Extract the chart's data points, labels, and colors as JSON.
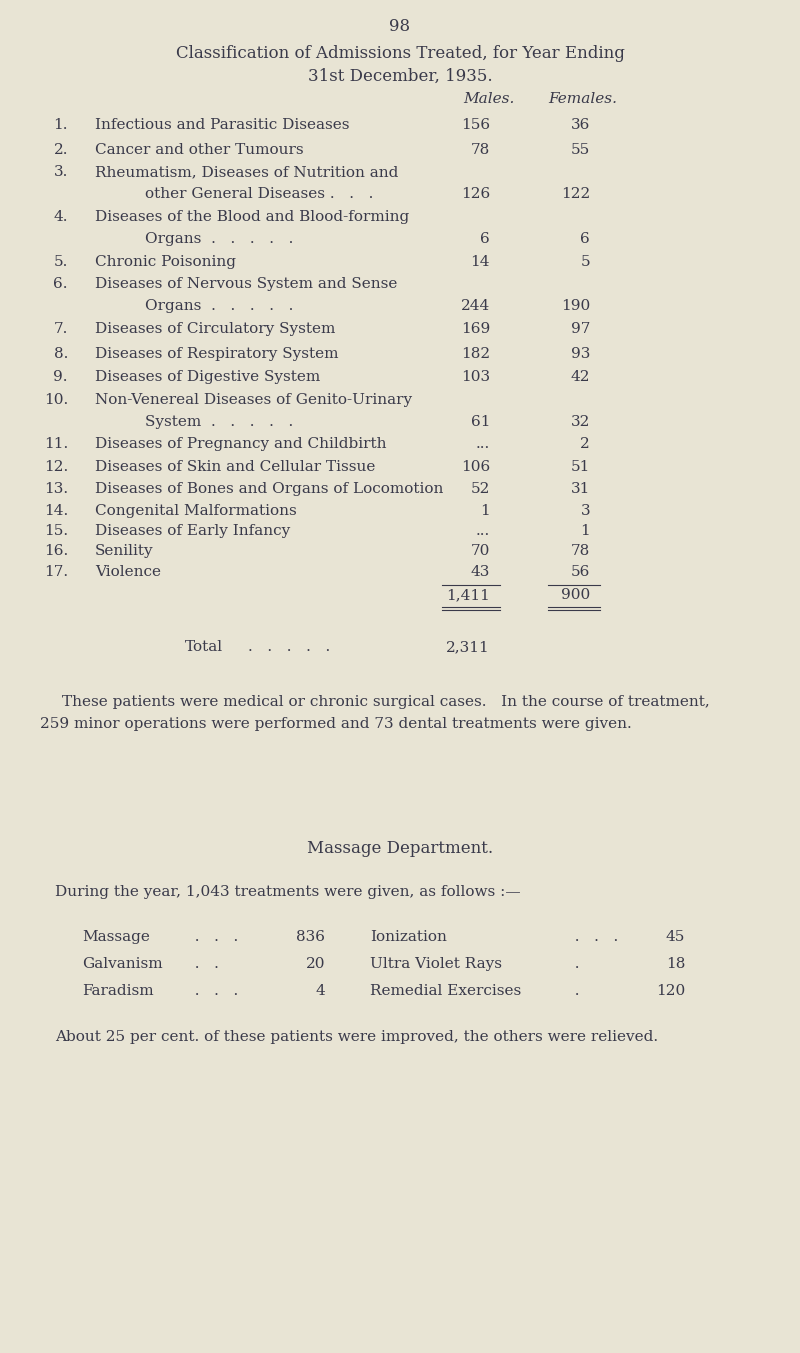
{
  "bg_color": "#e8e4d4",
  "text_color": "#3a3a4a",
  "page_number": "98",
  "title_line1": "Classification of Admissions Treated, for Year Ending",
  "title_line2": "31st December, 1935.",
  "col_males": "Males.",
  "col_females": "Females.",
  "rows": [
    {
      "num": "1.",
      "desc_line1": "Infectious and Parasitic Diseases",
      "desc_line2": null,
      "dots": "  .   .",
      "males": "156",
      "females": "36"
    },
    {
      "num": "2.",
      "desc_line1": "Cancer and other Tumours",
      "desc_line2": null,
      "dots": "  .   .   .",
      "males": "78",
      "females": "55"
    },
    {
      "num": "3.",
      "desc_line1": "Rheumatism, Diseases of Nutrition and",
      "desc_line2": "other General Diseases .   .   .",
      "dots": null,
      "males": "126",
      "females": "122"
    },
    {
      "num": "4.",
      "desc_line1": "Diseases of the Blood and Blood-forming",
      "desc_line2": "Organs  .   .   .   .   .",
      "dots": null,
      "males": "6",
      "females": "6"
    },
    {
      "num": "5.",
      "desc_line1": "Chronic Poisoning",
      "desc_line2": null,
      "dots": "  .   .   .   .",
      "males": "14",
      "females": "5"
    },
    {
      "num": "6.",
      "desc_line1": "Diseases of Nervous System and Sense",
      "desc_line2": "Organs  .   .   .   .   .",
      "dots": null,
      "males": "244",
      "females": "190"
    },
    {
      "num": "7.",
      "desc_line1": "Diseases of Circulatory System",
      "desc_line2": null,
      "dots": "  .   .",
      "males": "169",
      "females": "97"
    },
    {
      "num": "8.",
      "desc_line1": "Diseases of Respiratory System",
      "desc_line2": null,
      "dots": "  .   .",
      "males": "182",
      "females": "93"
    },
    {
      "num": "9.",
      "desc_line1": "Diseases of Digestive System",
      "desc_line2": null,
      "dots": "  .   .",
      "males": "103",
      "females": "42"
    },
    {
      "num": "10.",
      "desc_line1": "Non-Venereal Diseases of Genito-Urinary",
      "desc_line2": "System  .   .   .   .   .",
      "dots": null,
      "males": "61",
      "females": "32"
    },
    {
      "num": "11.",
      "desc_line1": "Diseases of Pregnancy and Childbirth",
      "desc_line2": null,
      "dots": "  .",
      "males": "...",
      "females": "2"
    },
    {
      "num": "12.",
      "desc_line1": "Diseases of Skin and Cellular Tissue",
      "desc_line2": null,
      "dots": "  .",
      "males": "106",
      "females": "51"
    },
    {
      "num": "13.",
      "desc_line1": "Diseases of Bones and Organs of Locomotion",
      "desc_line2": null,
      "dots": null,
      "males": "52",
      "females": "31"
    },
    {
      "num": "14.",
      "desc_line1": "Congenital Malformations",
      "desc_line2": null,
      "dots": "  .   .   .",
      "males": "1",
      "females": "3"
    },
    {
      "num": "15.",
      "desc_line1": "Diseases of Early Infancy",
      "desc_line2": null,
      "dots": "  .   .   .",
      "males": "...",
      "females": "1"
    },
    {
      "num": "16.",
      "desc_line1": "Senility",
      "desc_line2": null,
      "dots": "  .   .   .   .   .   .",
      "males": "70",
      "females": "78"
    },
    {
      "num": "17.",
      "desc_line1": "Violence",
      "desc_line2": null,
      "dots": "  .   .   .   .   .   .",
      "males": "43",
      "females": "56"
    }
  ],
  "subtotal_males": "1,411",
  "subtotal_females": "900",
  "total_label": "Total",
  "total_value": "2,311",
  "para1_line1": "These patients were medical or chronic surgical cases.   In the course of treatment,",
  "para1_line2": "259 minor operations were performed and 73 dental treatments were given.",
  "massage_title": "Massage Department.",
  "massage_intro": "During the year, 1,043 treatments were given, as follows :—",
  "massage_left": [
    {
      "label": "Massage",
      "dots": "  .   .   .",
      "value": "836"
    },
    {
      "label": "Galvanism",
      "dots": "  .   .",
      "value": "20"
    },
    {
      "label": "Faradism",
      "dots": "  .   .   .",
      "value": "4"
    }
  ],
  "massage_right": [
    {
      "label": "Ionization",
      "dots": "  .   .   .",
      "value": "45"
    },
    {
      "label": "Ultra Violet Rays",
      "dots": "  .",
      "value": "18"
    },
    {
      "label": "Remedial Exercises",
      "dots": "  .",
      "value": "120"
    }
  ],
  "para2": "About 25 per cent. of these patients were improved, the others were relieved."
}
